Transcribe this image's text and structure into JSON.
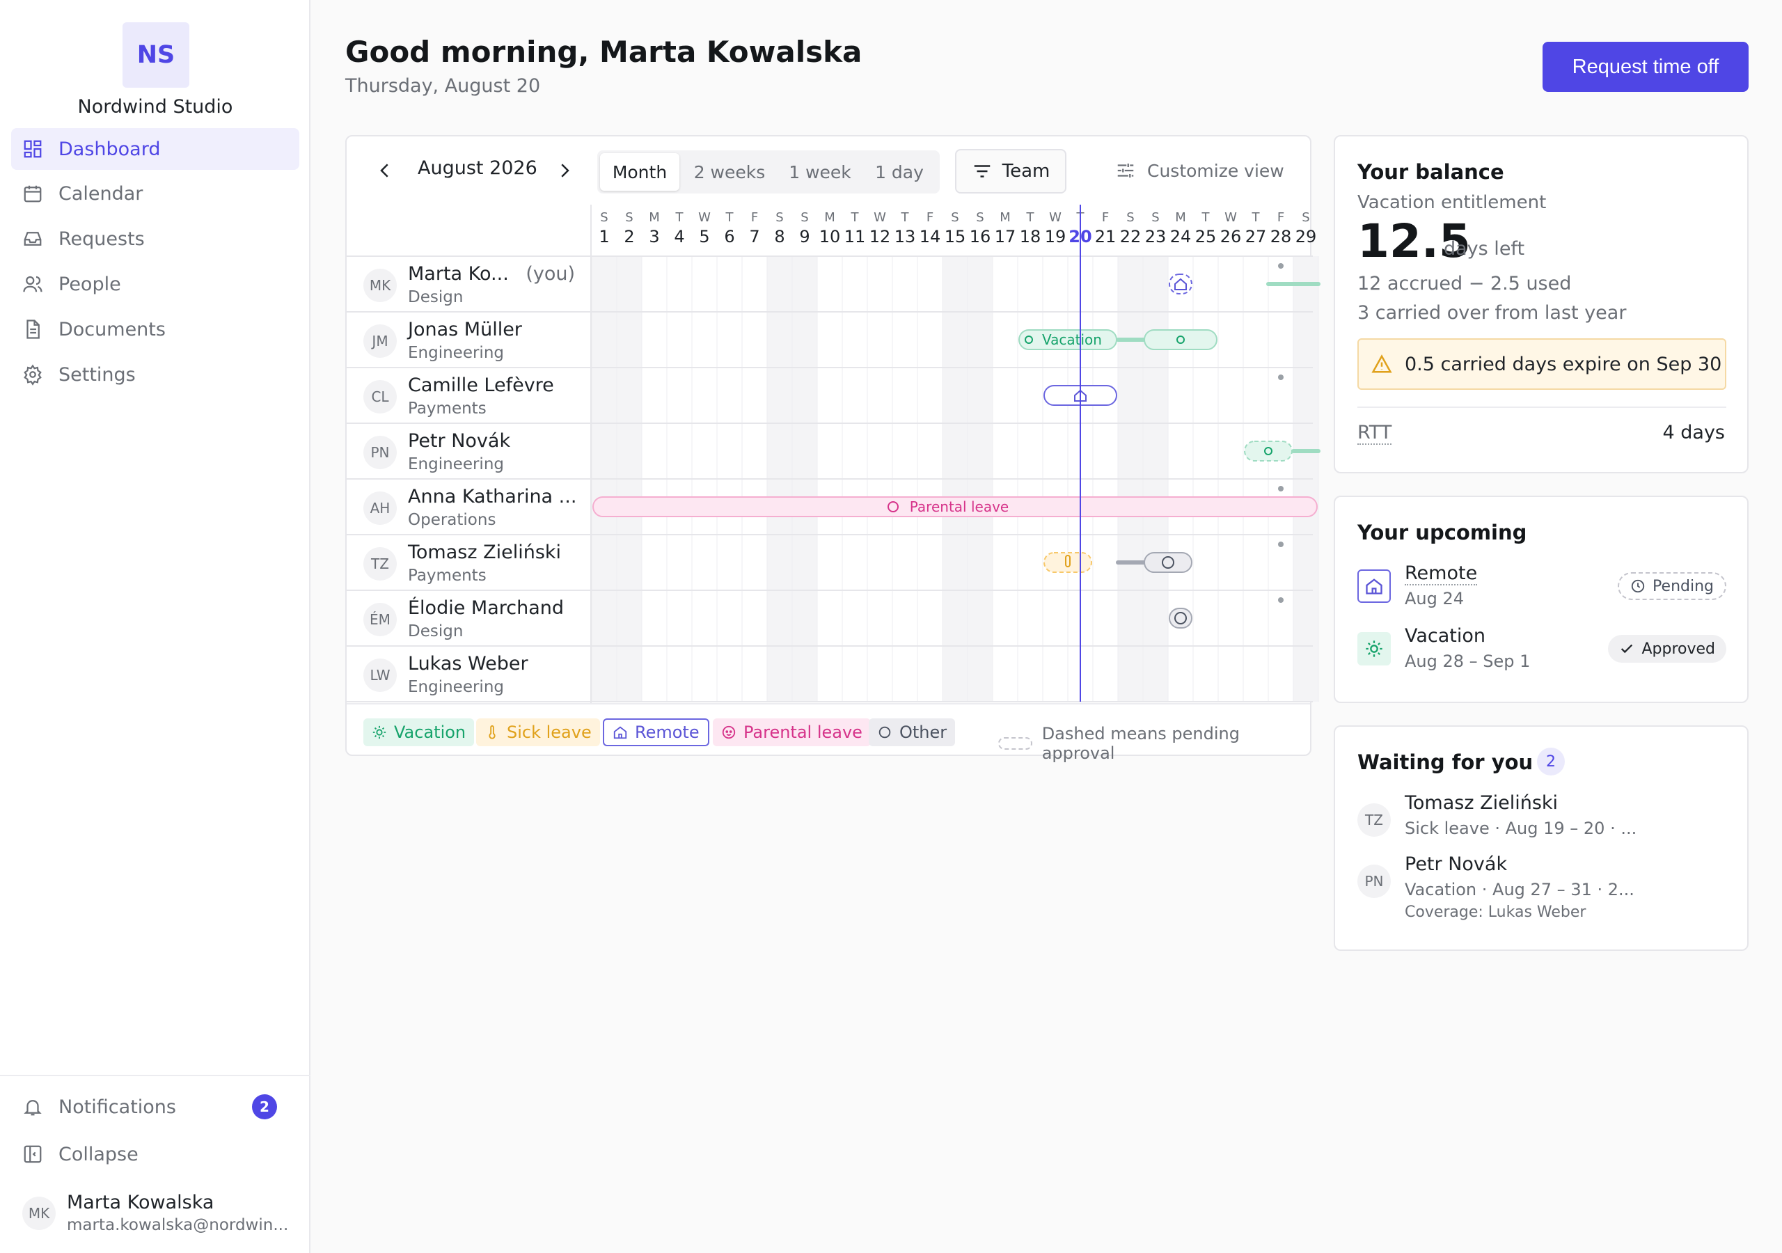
{
  "sidebar": {
    "logo": "NS",
    "org_name": "Nordwind Studio",
    "nav": [
      {
        "label": "Dashboard",
        "icon": "dashboard-icon",
        "active": true
      },
      {
        "label": "Calendar",
        "icon": "calendar-icon"
      },
      {
        "label": "Requests",
        "icon": "inbox-icon"
      },
      {
        "label": "People",
        "icon": "people-icon"
      },
      {
        "label": "Documents",
        "icon": "document-icon"
      },
      {
        "label": "Settings",
        "icon": "gear-icon"
      }
    ],
    "notifications_label": "Notifications",
    "notifications_count": "2",
    "collapse_label": "Collapse",
    "user": {
      "initials": "MK",
      "name": "Marta Kowalska",
      "email": "marta.kowalska@nordwin..."
    }
  },
  "header": {
    "greeting": "Good morning, Marta Kowalska",
    "date": "Thursday, August 20",
    "request_button": "Request time off"
  },
  "calendar": {
    "month_label": "August 2026",
    "views": [
      "Month",
      "2 weeks",
      "1 week",
      "1 day"
    ],
    "selected_view": "Month",
    "team_button": "Team",
    "customize_label": "Customize view",
    "today": 20,
    "days": [
      {
        "d": "1",
        "w": "S"
      },
      {
        "d": "2",
        "w": "S"
      },
      {
        "d": "3",
        "w": "M"
      },
      {
        "d": "4",
        "w": "T"
      },
      {
        "d": "5",
        "w": "W"
      },
      {
        "d": "6",
        "w": "T"
      },
      {
        "d": "7",
        "w": "F"
      },
      {
        "d": "8",
        "w": "S"
      },
      {
        "d": "9",
        "w": "S"
      },
      {
        "d": "10",
        "w": "M"
      },
      {
        "d": "11",
        "w": "T"
      },
      {
        "d": "12",
        "w": "W"
      },
      {
        "d": "13",
        "w": "T"
      },
      {
        "d": "14",
        "w": "F"
      },
      {
        "d": "15",
        "w": "S"
      },
      {
        "d": "16",
        "w": "S"
      },
      {
        "d": "17",
        "w": "M"
      },
      {
        "d": "18",
        "w": "T"
      },
      {
        "d": "19",
        "w": "W"
      },
      {
        "d": "20",
        "w": "T"
      },
      {
        "d": "21",
        "w": "F"
      },
      {
        "d": "22",
        "w": "S"
      },
      {
        "d": "23",
        "w": "S"
      },
      {
        "d": "24",
        "w": "M"
      },
      {
        "d": "25",
        "w": "T"
      },
      {
        "d": "26",
        "w": "W"
      },
      {
        "d": "27",
        "w": "T"
      },
      {
        "d": "28",
        "w": "F"
      },
      {
        "d": "29",
        "w": "S"
      }
    ],
    "people": [
      {
        "initials": "MK",
        "name": "Marta Ko...",
        "team": "Design",
        "you": "(you)"
      },
      {
        "initials": "JM",
        "name": "Jonas Müller",
        "team": "Engineering"
      },
      {
        "initials": "CL",
        "name": "Camille Lefèvre",
        "team": "Payments"
      },
      {
        "initials": "PN",
        "name": "Petr Novák",
        "team": "Engineering"
      },
      {
        "initials": "AH",
        "name": "Anna Katharina ...",
        "team": "Operations"
      },
      {
        "initials": "TZ",
        "name": "Tomasz Zieliński",
        "team": "Payments"
      },
      {
        "initials": "ÉM",
        "name": "Élodie Marchand",
        "team": "Design"
      },
      {
        "initials": "LW",
        "name": "Lukas Weber",
        "team": "Engineering"
      }
    ],
    "events": [
      {
        "row": 0,
        "start": 24,
        "end": 24,
        "type": "remote",
        "pending": true
      },
      {
        "row": 0,
        "start": 28,
        "end": 29,
        "type": "vacation",
        "line": true
      },
      {
        "row": 1,
        "start": 18,
        "end": 21,
        "type": "vacation",
        "label": "Vacation"
      },
      {
        "row": 1,
        "start": 22,
        "end": 23,
        "type": "vacation",
        "line": true
      },
      {
        "row": 1,
        "start": 23,
        "end": 25,
        "type": "vacation"
      },
      {
        "row": 2,
        "start": 19,
        "end": 21,
        "type": "remote"
      },
      {
        "row": 3,
        "start": 27,
        "end": 28,
        "type": "vacation",
        "pending": true
      },
      {
        "row": 3,
        "start": 29,
        "end": 29,
        "type": "vacation",
        "line": true
      },
      {
        "row": 4,
        "start": 1,
        "end": 29,
        "type": "parental",
        "label": "Parental leave"
      },
      {
        "row": 5,
        "start": 19,
        "end": 20,
        "type": "sick",
        "pending": true
      },
      {
        "row": 5,
        "start": 22,
        "end": 23,
        "type": "other",
        "line": true
      },
      {
        "row": 5,
        "start": 23,
        "end": 24,
        "type": "other"
      },
      {
        "row": 6,
        "start": 24,
        "end": 24,
        "type": "other"
      }
    ],
    "dots": [
      {
        "row": 0,
        "day": 28
      },
      {
        "row": 2,
        "day": 28
      },
      {
        "row": 4,
        "day": 28
      },
      {
        "row": 5,
        "day": 28
      },
      {
        "row": 6,
        "day": 28
      }
    ],
    "legend": [
      {
        "label": "Vacation",
        "type": "vacation"
      },
      {
        "label": "Sick leave",
        "type": "sick"
      },
      {
        "label": "Remote",
        "type": "remote"
      },
      {
        "label": "Parental leave",
        "type": "parental"
      },
      {
        "label": "Other",
        "type": "other"
      }
    ],
    "pending_note": "Dashed means pending approval",
    "colors": {
      "vacation": {
        "bg": "#e3f6ee",
        "border": "#9fdcc2",
        "text": "#16a36b"
      },
      "sick": {
        "bg": "#fff3dd",
        "border": "#f7c86a",
        "text": "#e0a11b"
      },
      "remote": {
        "bg": "#ffffff",
        "border": "#6b66e0",
        "text": "#5b55d6"
      },
      "parental": {
        "bg": "#fde7f2",
        "border": "#f5aed0",
        "text": "#d6338a"
      },
      "other": {
        "bg": "#ececf0",
        "border": "#a4a8b3",
        "text": "#4b5260"
      }
    }
  },
  "balance": {
    "title": "Your balance",
    "subtitle": "Vacation entitlement",
    "days": "12.5",
    "unit": "days left",
    "accrued": "12 accrued − 2.5 used",
    "carried": "3 carried over from last year",
    "warning": "0.5 carried days expire on Sep 30",
    "rtt_label": "RTT",
    "rtt_value": "4 days"
  },
  "upcoming": {
    "title": "Your upcoming",
    "items": [
      {
        "type": "Remote",
        "date": "Aug 24",
        "status": "Pending"
      },
      {
        "type": "Vacation",
        "date": "Aug 28 – Sep 1",
        "status": "Approved"
      }
    ]
  },
  "waiting": {
    "title": "Waiting for you",
    "count": "2",
    "items": [
      {
        "initials": "TZ",
        "name": "Tomasz Zieliński",
        "detail": "Sick leave · Aug 19 – 20 · ...",
        "coverage": ""
      },
      {
        "initials": "PN",
        "name": "Petr Novák",
        "detail": "Vacation · Aug 27 – 31 · 2...",
        "coverage": "Coverage: Lukas Weber"
      }
    ]
  }
}
